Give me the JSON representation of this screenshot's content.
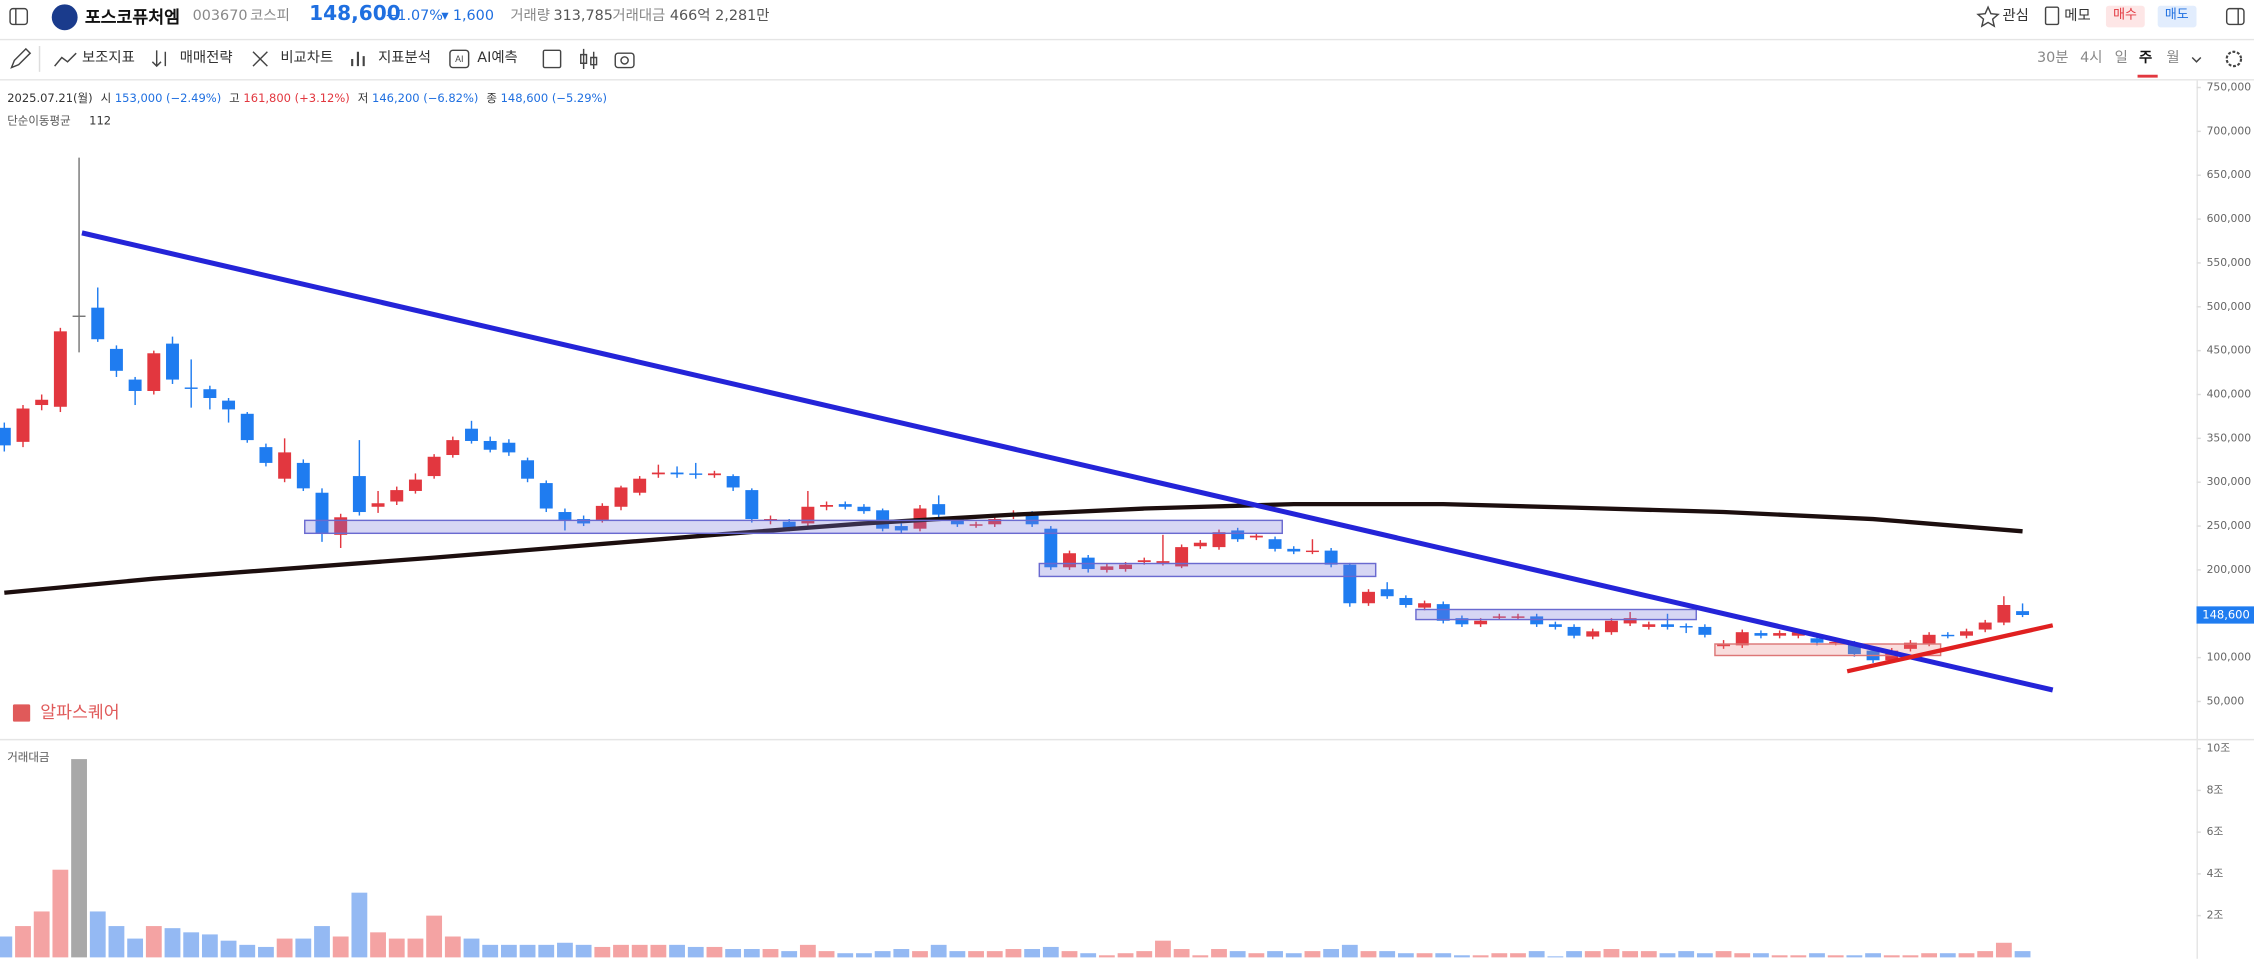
{
  "header": {
    "name": "포스코퓨처엠",
    "code": "003670",
    "market": "코스피",
    "price": "148,600",
    "change_rate": "−1.07%",
    "change": "1,600",
    "volume_label": "거래량",
    "volume": "313,785",
    "amount_label": "거래대금",
    "amount": "466억 2,281만",
    "actions": [
      "관심",
      "메모",
      "매수",
      "매도"
    ]
  },
  "toolbar": {
    "tools": [
      "보조지표",
      "매매전략",
      "비교차트",
      "지표분석",
      "AI예측"
    ],
    "periods": [
      "30분",
      "4시",
      "일",
      "주",
      "월"
    ]
  },
  "info": {
    "date": "2025.07.21(월)",
    "items": [
      {
        "label": "시",
        "value": "153,000 (−2.49%)"
      },
      {
        "label": "고",
        "value": "161,800 (+3.12%)"
      },
      {
        "label": "저",
        "value": "146,200 (−6.82%)"
      },
      {
        "label": "종",
        "value": "148,600 (−5.29%)"
      }
    ]
  },
  "chart_data": [
    {
      "type": "candlestick",
      "open": [
        362000,
        346000,
        388000,
        386000,
        490000,
        499000,
        452000,
        417000,
        404000,
        458000,
        408000,
        406000,
        393000,
        378000,
        340000,
        304000,
        322000,
        288000,
        240000,
        307000,
        272000,
        278000,
        290000,
        307000,
        331000,
        361000,
        347000,
        345000,
        325000,
        299000,
        266000,
        258000,
        257000,
        272000,
        288000,
        309000,
        311000,
        310000,
        308000,
        307000,
        291000,
        256000,
        255000,
        253000,
        272000,
        275000,
        272000,
        268000,
        250000,
        247000,
        275000,
        258000,
        251000,
        252000,
        262000,
        264000,
        247000,
        203000,
        214000,
        200000,
        201000,
        209000,
        208000,
        204000,
        227000,
        226000,
        245000,
        237000,
        235000,
        224000,
        221000,
        222000,
        206000,
        162000,
        178000,
        168000,
        157000,
        161000,
        145000,
        138000,
        146000,
        146000,
        147000,
        138000,
        135000,
        124000,
        129000,
        139000,
        135000,
        138000,
        136000,
        135000,
        113000,
        114000,
        128000,
        125000,
        125000,
        122000,
        117000,
        116000,
        108000,
        97000,
        110000,
        116000,
        126000,
        125000,
        132000,
        140000,
        153000
      ],
      "high": [
        368000,
        388000,
        400000,
        476000,
        670000,
        522000,
        456000,
        420000,
        450000,
        466000,
        440000,
        410000,
        396000,
        380000,
        344000,
        350000,
        326000,
        293000,
        264000,
        348000,
        290000,
        295000,
        310000,
        332000,
        352000,
        370000,
        352000,
        349000,
        328000,
        302000,
        270000,
        262000,
        276000,
        296000,
        307000,
        320000,
        318000,
        322000,
        313000,
        309000,
        293000,
        262000,
        258000,
        290000,
        278000,
        278000,
        275000,
        270000,
        253000,
        274000,
        285000,
        261000,
        255000,
        262000,
        268000,
        267000,
        250000,
        222000,
        217000,
        207000,
        209000,
        214000,
        240000,
        229000,
        234000,
        246000,
        248000,
        242000,
        238000,
        227000,
        235000,
        225000,
        208000,
        178000,
        186000,
        171000,
        165000,
        164000,
        148000,
        145000,
        150000,
        150000,
        150000,
        141000,
        138000,
        133000,
        145000,
        152000,
        141000,
        150000,
        139000,
        138000,
        120000,
        132000,
        131000,
        131000,
        132000,
        125000,
        121000,
        119000,
        111000,
        111000,
        120000,
        129000,
        129000,
        133000,
        143000,
        170000,
        161800
      ],
      "low": [
        335000,
        340000,
        382000,
        380000,
        448000,
        460000,
        420000,
        388000,
        400000,
        412000,
        385000,
        383000,
        368000,
        345000,
        318000,
        300000,
        290000,
        232000,
        225000,
        262000,
        265000,
        274000,
        287000,
        304000,
        328000,
        344000,
        334000,
        330000,
        300000,
        266000,
        245000,
        250000,
        254000,
        268000,
        285000,
        305000,
        305000,
        304000,
        305000,
        290000,
        254000,
        252000,
        244000,
        250000,
        268000,
        269000,
        264000,
        244000,
        242000,
        244000,
        260000,
        249000,
        248000,
        249000,
        258000,
        249000,
        200000,
        200000,
        197000,
        197000,
        198000,
        206000,
        205000,
        202000,
        224000,
        223000,
        232000,
        234000,
        221000,
        218000,
        218000,
        203000,
        158000,
        159000,
        167000,
        157000,
        154000,
        139000,
        135000,
        135000,
        143000,
        143000,
        135000,
        132000,
        122000,
        121000,
        126000,
        136000,
        132000,
        132000,
        128000,
        123000,
        110000,
        111000,
        122000,
        122000,
        122000,
        114000,
        114000,
        101000,
        94000,
        94000,
        107000,
        113000,
        122000,
        122000,
        129000,
        137000,
        146200
      ],
      "close": [
        342000,
        384000,
        394000,
        472000,
        490000,
        463000,
        427000,
        404000,
        447000,
        417000,
        407000,
        396000,
        383000,
        348000,
        322000,
        334000,
        293000,
        242000,
        260000,
        266000,
        276000,
        291000,
        303000,
        329000,
        348000,
        347000,
        337000,
        334000,
        304000,
        270000,
        257000,
        253000,
        273000,
        294000,
        304000,
        311000,
        309000,
        309000,
        310000,
        294000,
        258000,
        258000,
        247000,
        272000,
        274000,
        272000,
        267000,
        247000,
        245000,
        270000,
        263000,
        252000,
        252000,
        258000,
        264000,
        252000,
        203000,
        219000,
        201000,
        204000,
        206000,
        211000,
        210000,
        226000,
        231000,
        243000,
        235000,
        239000,
        224000,
        221000,
        222000,
        206000,
        162000,
        175000,
        170000,
        160000,
        162000,
        142000,
        138000,
        142000,
        147000,
        147000,
        138000,
        135000,
        125000,
        130000,
        142000,
        145000,
        138000,
        135000,
        135000,
        126000,
        116000,
        129000,
        125000,
        128000,
        129000,
        117000,
        118000,
        104000,
        97000,
        108000,
        117000,
        126000,
        125000,
        130000,
        140000,
        160000,
        148600
      ],
      "up_color": "#e2373f",
      "down_color": "#1f7cf0",
      "flat_color": "#777777",
      "ylim": [
        9000,
        758000
      ],
      "yticks": [
        {
          "value": 750000,
          "label": "750,000"
        },
        {
          "value": 700000,
          "label": "700,000"
        },
        {
          "value": 650000,
          "label": "650,000"
        },
        {
          "value": 600000,
          "label": "600,000"
        },
        {
          "value": 550000,
          "label": "550,000"
        },
        {
          "value": 500000,
          "label": "500,000"
        },
        {
          "value": 450000,
          "label": "450,000"
        },
        {
          "value": 400000,
          "label": "400,000"
        },
        {
          "value": 350000,
          "label": "350,000"
        },
        {
          "value": 300000,
          "label": "300,000"
        },
        {
          "value": 250000,
          "label": "250,000"
        },
        {
          "value": 200000,
          "label": "200,000"
        },
        {
          "value": 150000,
          "label": "150,000"
        },
        {
          "value": 100000,
          "label": "100,000"
        },
        {
          "value": 50000,
          "label": "50,000"
        }
      ],
      "last_price": {
        "value": 148600,
        "label": "148,600"
      },
      "moving_average": {
        "name": "단순이동평균",
        "period": 112,
        "color": "#1c0e0e",
        "x": [
          0,
          8,
          23,
          38,
          46,
          54,
          61,
          69,
          77,
          84,
          92,
          100,
          108
        ],
        "values": [
          174000,
          190000,
          214000,
          240000,
          253000,
          263000,
          270000,
          275000,
          275000,
          271000,
          266000,
          258000,
          244000
        ]
      },
      "watermark": "알파스퀘어"
    },
    {
      "type": "bar",
      "title": "거래대금",
      "values": [
        1.0,
        1.5,
        2.2,
        4.2,
        9.5,
        2.2,
        1.5,
        0.9,
        1.5,
        1.4,
        1.2,
        1.1,
        0.8,
        0.6,
        0.5,
        0.9,
        0.9,
        1.5,
        1.0,
        3.1,
        1.2,
        0.9,
        0.9,
        2.0,
        1.0,
        0.9,
        0.6,
        0.6,
        0.6,
        0.6,
        0.7,
        0.6,
        0.5,
        0.6,
        0.6,
        0.6,
        0.6,
        0.5,
        0.5,
        0.4,
        0.4,
        0.4,
        0.3,
        0.6,
        0.3,
        0.2,
        0.2,
        0.3,
        0.4,
        0.3,
        0.6,
        0.3,
        0.3,
        0.3,
        0.4,
        0.4,
        0.5,
        0.3,
        0.2,
        0.1,
        0.2,
        0.3,
        0.8,
        0.4,
        0.1,
        0.4,
        0.3,
        0.2,
        0.3,
        0.2,
        0.3,
        0.4,
        0.6,
        0.3,
        0.3,
        0.2,
        0.2,
        0.2,
        0.1,
        0.1,
        0.2,
        0.2,
        0.3,
        0.05,
        0.3,
        0.3,
        0.4,
        0.3,
        0.3,
        0.2,
        0.3,
        0.2,
        0.3,
        0.2,
        0.2,
        0.1,
        0.1,
        0.2,
        0.1,
        0.1,
        0.2,
        0.1,
        0.1,
        0.2,
        0.2,
        0.2,
        0.3,
        0.7,
        0.3
      ],
      "up_color": "#f4a3a3",
      "down_color": "#94b9f3",
      "flat_color": "#a8a8a8",
      "ylim": [
        0,
        10.4
      ],
      "yticks": [
        {
          "value": 10,
          "label": "10조"
        },
        {
          "value": 8,
          "label": "8조"
        },
        {
          "value": 6,
          "label": "6조"
        },
        {
          "value": 4,
          "label": "4조"
        },
        {
          "value": 2,
          "label": "2조"
        }
      ]
    }
  ]
}
